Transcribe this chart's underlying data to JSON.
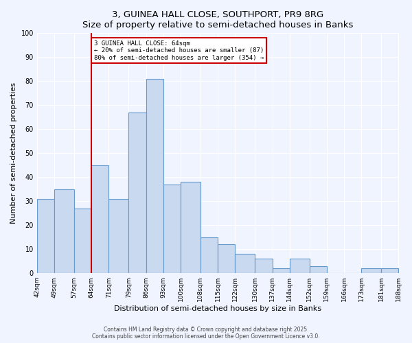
{
  "title": "3, GUINEA HALL CLOSE, SOUTHPORT, PR9 8RG",
  "subtitle": "Size of property relative to semi-detached houses in Banks",
  "xlabel": "Distribution of semi-detached houses by size in Banks",
  "ylabel": "Number of semi-detached properties",
  "bins": [
    42,
    49,
    57,
    64,
    71,
    79,
    86,
    93,
    100,
    108,
    115,
    122,
    130,
    137,
    144,
    152,
    159,
    166,
    173,
    181,
    188
  ],
  "counts": [
    31,
    35,
    27,
    45,
    31,
    67,
    81,
    37,
    38,
    15,
    12,
    8,
    6,
    2,
    6,
    3,
    0,
    0,
    2,
    2
  ],
  "bar_fill": "#c9d9f0",
  "bar_edge": "#6699cc",
  "vline_x": 64,
  "vline_color": "#cc0000",
  "annotation_title": "3 GUINEA HALL CLOSE: 64sqm",
  "annotation_line1": "← 20% of semi-detached houses are smaller (87)",
  "annotation_line2": "80% of semi-detached houses are larger (354) →",
  "annotation_box_color": "#cc0000",
  "ylim": [
    0,
    100
  ],
  "background_color": "#f0f4ff",
  "footer1": "Contains HM Land Registry data © Crown copyright and database right 2025.",
  "footer2": "Contains public sector information licensed under the Open Government Licence v3.0.",
  "tick_labels": [
    "42sqm",
    "49sqm",
    "57sqm",
    "64sqm",
    "71sqm",
    "79sqm",
    "86sqm",
    "93sqm",
    "100sqm",
    "108sqm",
    "115sqm",
    "122sqm",
    "130sqm",
    "137sqm",
    "144sqm",
    "152sqm",
    "159sqm",
    "166sqm",
    "173sqm",
    "181sqm",
    "188sqm"
  ]
}
